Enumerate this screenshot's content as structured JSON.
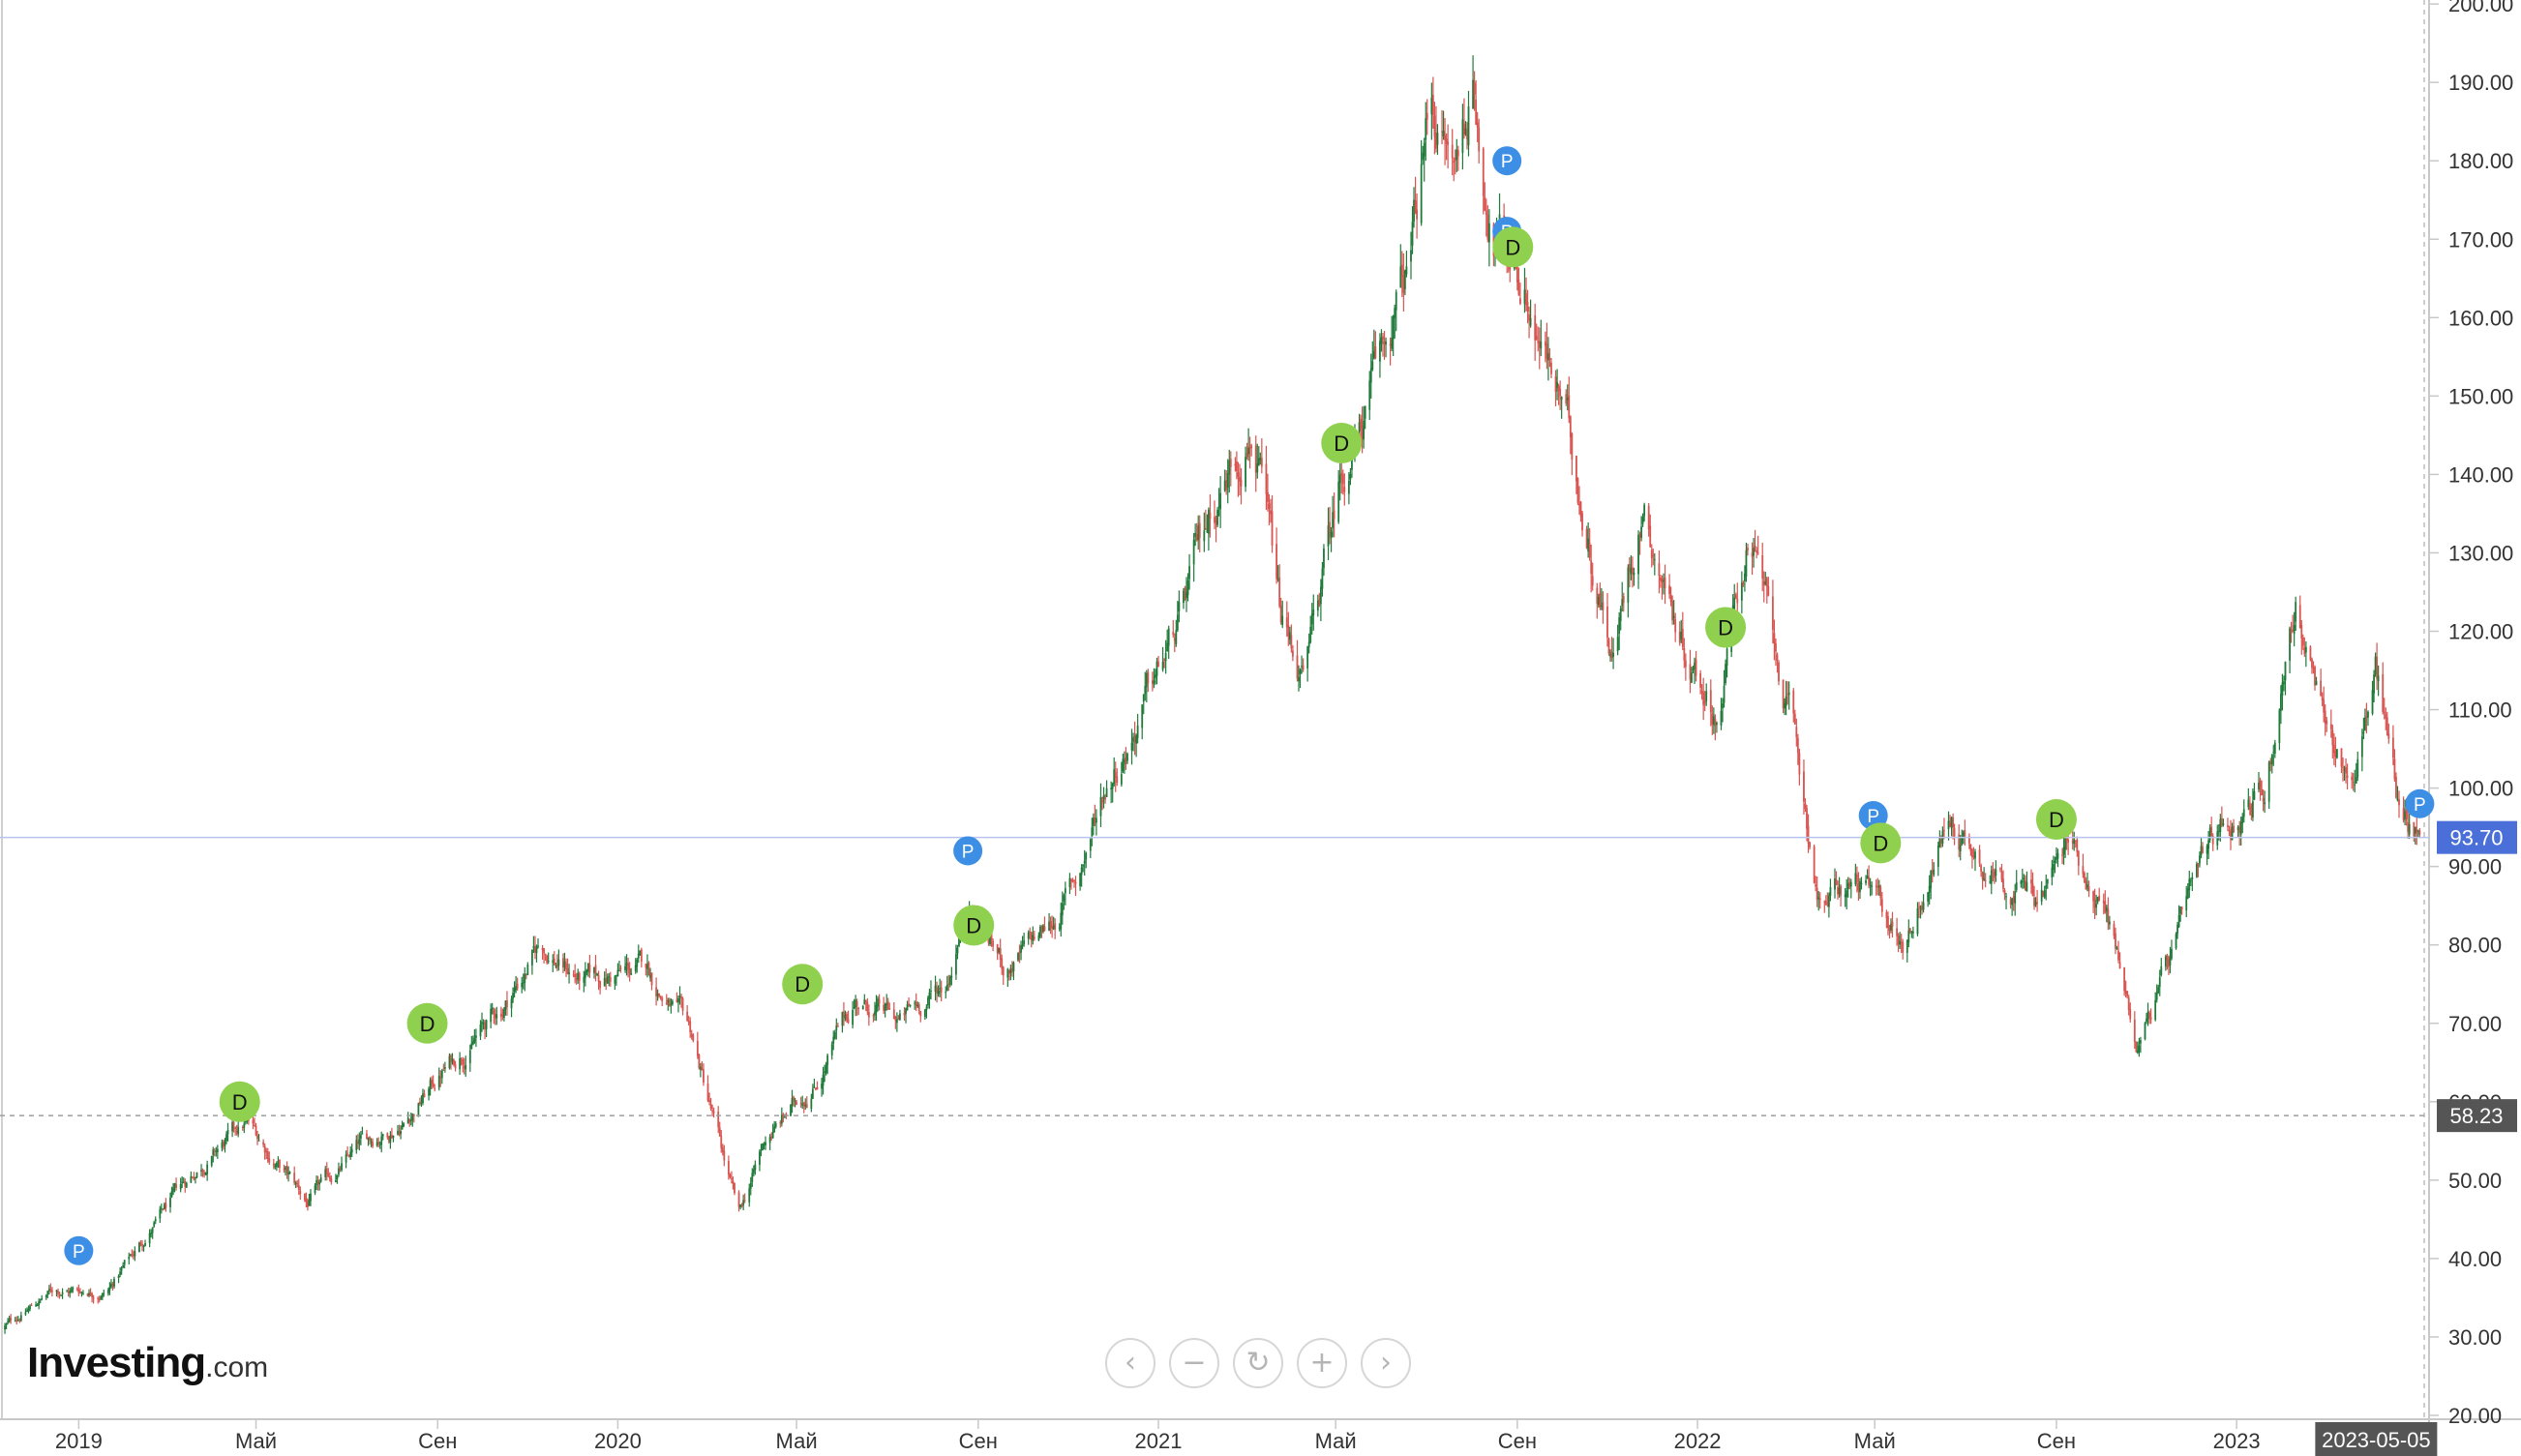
{
  "brand": {
    "logo_main": "Investing",
    "logo_suffix": ".com"
  },
  "nav_controls": [
    {
      "name": "scroll-left-button",
      "icon": "chevron-left-icon",
      "glyph": "‹"
    },
    {
      "name": "zoom-out-button",
      "icon": "minus-icon",
      "glyph": "−"
    },
    {
      "name": "reset-zoom-button",
      "icon": "refresh-icon",
      "glyph": "↻"
    },
    {
      "name": "zoom-in-button",
      "icon": "plus-icon",
      "glyph": "+"
    },
    {
      "name": "scroll-right-button",
      "icon": "chevron-right-icon",
      "glyph": "›"
    }
  ],
  "chart_data": {
    "type": "candlestick",
    "y_range": [
      20,
      200
    ],
    "y_ticks": [
      20,
      30,
      40,
      50,
      60,
      70,
      80,
      90,
      100,
      110,
      120,
      130,
      140,
      150,
      160,
      170,
      180,
      190,
      200
    ],
    "y_tick_labels": [
      "20.00",
      "30.00",
      "40.00",
      "50.00",
      "60.00",
      "70.00",
      "80.00",
      "90.00",
      "100.00",
      "110.00",
      "120.00",
      "130.00",
      "140.00",
      "150.00",
      "160.00",
      "170.00",
      "180.00",
      "190.00",
      "200.00"
    ],
    "x_range": [
      "2018-11-10",
      "2023-05-10"
    ],
    "x_ticks": [
      {
        "date": "2019-01-01",
        "label": "2019"
      },
      {
        "date": "2019-05-01",
        "label": "Май"
      },
      {
        "date": "2019-09-01",
        "label": "Сен"
      },
      {
        "date": "2020-01-01",
        "label": "2020"
      },
      {
        "date": "2020-05-01",
        "label": "Май"
      },
      {
        "date": "2020-09-01",
        "label": "Сен"
      },
      {
        "date": "2021-01-01",
        "label": "2021"
      },
      {
        "date": "2021-05-01",
        "label": "Май"
      },
      {
        "date": "2021-09-01",
        "label": "Сен"
      },
      {
        "date": "2022-01-01",
        "label": "2022"
      },
      {
        "date": "2022-05-01",
        "label": "Май"
      },
      {
        "date": "2022-09-01",
        "label": "Сен"
      },
      {
        "date": "2023-01-01",
        "label": "2023"
      }
    ],
    "current_date_label": "2023-05-05",
    "last_price": 93.7,
    "last_price_label": "93.70",
    "crosshair_price": 58.23,
    "crosshair_price_label": "58.23",
    "colors": {
      "up": "#1f7a3a",
      "down": "#d9534f",
      "last_price_tag": "#4a6fd8",
      "last_price_line": "#b8c4ee",
      "crosshair_tag": "#555555",
      "dividend_marker": "#8fd14f",
      "p_marker": "#3d8fe6"
    },
    "price_path": [
      [
        "2018-11-10",
        31
      ],
      [
        "2018-12-15",
        36
      ],
      [
        "2019-01-20",
        36
      ],
      [
        "2019-02-20",
        44
      ],
      [
        "2019-03-25",
        52
      ],
      [
        "2019-04-25",
        57
      ],
      [
        "2019-05-20",
        51
      ],
      [
        "2019-06-05",
        47
      ],
      [
        "2019-07-10",
        54
      ],
      [
        "2019-08-10",
        58
      ],
      [
        "2019-09-05",
        64
      ],
      [
        "2019-10-15",
        72
      ],
      [
        "2019-11-10",
        80
      ],
      [
        "2019-12-10",
        75
      ],
      [
        "2020-01-20",
        77
      ],
      [
        "2020-02-20",
        68
      ],
      [
        "2020-03-23",
        45
      ],
      [
        "2020-04-10",
        55
      ],
      [
        "2020-05-15",
        63
      ],
      [
        "2020-06-10",
        73
      ],
      [
        "2020-07-10",
        70
      ],
      [
        "2020-08-10",
        75
      ],
      [
        "2020-08-25",
        86
      ],
      [
        "2020-09-20",
        77
      ],
      [
        "2020-10-20",
        82
      ],
      [
        "2020-11-10",
        90
      ],
      [
        "2020-11-25",
        100
      ],
      [
        "2020-12-20",
        110
      ],
      [
        "2021-01-15",
        120
      ],
      [
        "2021-02-05",
        135
      ],
      [
        "2021-03-05",
        148
      ],
      [
        "2021-03-25",
        120
      ],
      [
        "2021-04-10",
        113
      ],
      [
        "2021-05-05",
        140
      ],
      [
        "2021-05-25",
        150
      ],
      [
        "2021-06-20",
        166
      ],
      [
        "2021-07-05",
        188
      ],
      [
        "2021-07-20",
        178
      ],
      [
        "2021-08-01",
        190
      ],
      [
        "2021-08-15",
        172
      ],
      [
        "2021-09-05",
        166
      ],
      [
        "2021-10-05",
        145
      ],
      [
        "2021-11-05",
        118
      ],
      [
        "2021-11-25",
        137
      ],
      [
        "2021-12-20",
        120
      ],
      [
        "2022-01-15",
        110
      ],
      [
        "2022-02-05",
        133
      ],
      [
        "2022-03-05",
        108
      ],
      [
        "2022-03-25",
        85
      ],
      [
        "2022-04-20",
        88
      ],
      [
        "2022-05-20",
        80
      ],
      [
        "2022-06-20",
        96
      ],
      [
        "2022-07-20",
        90
      ],
      [
        "2022-08-20",
        86
      ],
      [
        "2022-09-10",
        93
      ],
      [
        "2022-10-05",
        85
      ],
      [
        "2022-10-25",
        68
      ],
      [
        "2022-11-20",
        79
      ],
      [
        "2022-12-20",
        95
      ],
      [
        "2023-01-20",
        100
      ],
      [
        "2023-02-10",
        124
      ],
      [
        "2023-03-01",
        107
      ],
      [
        "2023-03-20",
        101
      ],
      [
        "2023-04-05",
        115
      ],
      [
        "2023-04-20",
        99
      ],
      [
        "2023-05-05",
        93.7
      ]
    ],
    "markers": [
      {
        "type": "P",
        "date": "2019-01-01",
        "price": 41
      },
      {
        "type": "D",
        "date": "2019-04-20",
        "price": 60
      },
      {
        "type": "D",
        "date": "2019-08-25",
        "price": 70
      },
      {
        "type": "D",
        "date": "2020-05-05",
        "price": 75
      },
      {
        "type": "P",
        "date": "2020-08-25",
        "price": 92
      },
      {
        "type": "D",
        "date": "2020-08-29",
        "price": 82.5
      },
      {
        "type": "D",
        "date": "2021-05-05",
        "price": 144
      },
      {
        "type": "P",
        "date": "2021-08-25",
        "price": 180
      },
      {
        "type": "P",
        "date": "2021-08-25",
        "price": 171
      },
      {
        "type": "D",
        "date": "2021-08-29",
        "price": 169
      },
      {
        "type": "D",
        "date": "2022-01-20",
        "price": 120.5
      },
      {
        "type": "P",
        "date": "2022-04-30",
        "price": 96.5
      },
      {
        "type": "D",
        "date": "2022-05-05",
        "price": 93
      },
      {
        "type": "D",
        "date": "2022-09-01",
        "price": 96
      },
      {
        "type": "P",
        "date": "2023-05-05",
        "price": 98
      }
    ]
  }
}
